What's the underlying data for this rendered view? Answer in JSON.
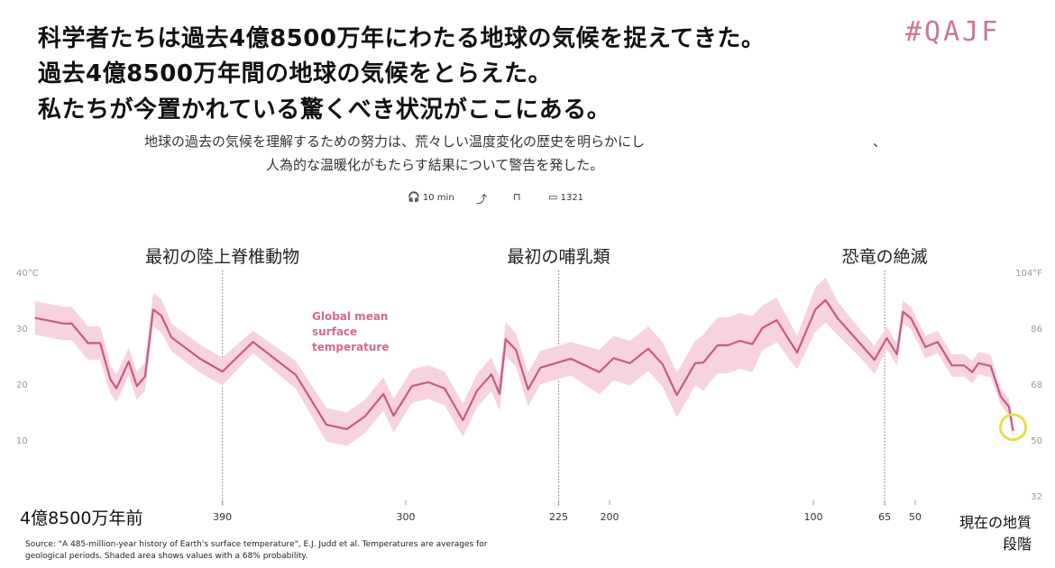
{
  "header": {
    "title_lines": [
      "科学者たちは過去4億8500万年にわたる地球の気候を捉えてきた。",
      "過去4億8500万年間の地球の気候をとらえた。",
      "私たちが今置かれている驚くべき状況がここにある。"
    ],
    "tag": "#QAJF",
    "subtitle_lines": [
      "地球の過去の気候を理解するための努力は、荒々しい温度変化の歴史を明らかにし",
      "人為的な温暖化がもたらす結果について警告を発した。"
    ],
    "subtitle_mark": "、",
    "meta": {
      "listen": "10 min",
      "comments": "1321"
    }
  },
  "chart_data": {
    "type": "line",
    "x": [
      482,
      468,
      464,
      456,
      450,
      445,
      442,
      436,
      432,
      428,
      424,
      420,
      415,
      401,
      390,
      375,
      354,
      339,
      329,
      320,
      311,
      306,
      297,
      289,
      281,
      272,
      265,
      258,
      254,
      251,
      246,
      240,
      234,
      219,
      205,
      198,
      190,
      181,
      174,
      167,
      158,
      154,
      147,
      142,
      136,
      130,
      125,
      118,
      108,
      99,
      94,
      88,
      77,
      70,
      64,
      59,
      56,
      52,
      45,
      39,
      32,
      26,
      22,
      19,
      13,
      8,
      4,
      2
    ],
    "series": [
      {
        "name": "Global mean surface temperature",
        "color": "#c85a80",
        "band_color": "#f7d3dd",
        "values": [
          32,
          31,
          31,
          27.5,
          27.5,
          21,
          19.4,
          24.2,
          19.8,
          21.5,
          33.5,
          32.4,
          28.5,
          24.7,
          22.4,
          27.7,
          21.8,
          12.9,
          12.1,
          14.4,
          18.4,
          14.5,
          19.8,
          20.5,
          19.4,
          13.7,
          19,
          21.9,
          18.4,
          28.2,
          26.3,
          19.2,
          23.1,
          24.7,
          22.3,
          24.8,
          23.9,
          26.5,
          23.7,
          18.2,
          23.9,
          24,
          27.1,
          27.1,
          27.9,
          27.3,
          30.2,
          31.6,
          25.8,
          33.5,
          35.2,
          31.9,
          27.4,
          24.5,
          28.4,
          25.5,
          33.1,
          31.9,
          26.8,
          27.7,
          23.5,
          23.5,
          22.3,
          23.9,
          23.4,
          17.9,
          16.1,
          11.8
        ],
        "lower": [
          29,
          28,
          28,
          24.5,
          24.5,
          18.5,
          16.9,
          21.7,
          17.3,
          19,
          30.5,
          29.4,
          26,
          22.2,
          19.9,
          25.7,
          19.3,
          9.9,
          9.1,
          11.4,
          15.4,
          11.5,
          16.8,
          17.5,
          16.4,
          10.7,
          16,
          18.9,
          15.4,
          25.2,
          23.3,
          16.2,
          20.1,
          21.7,
          18.3,
          20.8,
          19.9,
          22.5,
          19.7,
          14.2,
          19.9,
          19,
          22.1,
          22.1,
          22.9,
          22.3,
          26.2,
          27.6,
          22.8,
          29.5,
          31.2,
          28.9,
          24.9,
          22,
          26.4,
          23.5,
          31.1,
          29.9,
          24.8,
          25.7,
          21.5,
          21.5,
          20.3,
          21.9,
          21.4,
          16.4,
          14.6,
          10.3
        ],
        "upper": [
          35,
          34,
          34,
          30.5,
          30.5,
          23.5,
          21.9,
          26.7,
          22.3,
          24,
          36.5,
          35.4,
          31,
          27.2,
          24.9,
          29.7,
          24.3,
          15.9,
          15.1,
          17.4,
          21.4,
          17.5,
          22.8,
          23.5,
          22.4,
          16.7,
          22,
          24.9,
          21.4,
          31.2,
          29.3,
          22.2,
          26.1,
          27.7,
          26.3,
          28.8,
          27.9,
          30.5,
          27.7,
          22.2,
          27.9,
          29,
          32.1,
          32.1,
          32.9,
          32.3,
          34.2,
          35.6,
          28.8,
          37.5,
          39.2,
          34.9,
          29.9,
          27,
          30.4,
          27.5,
          35.1,
          33.9,
          28.8,
          29.7,
          25.5,
          25.5,
          24.3,
          25.9,
          25.4,
          19.4,
          17.6,
          13.3
        ]
      }
    ],
    "xlim": [
      485,
      0
    ],
    "xticks": [
      390,
      300,
      225,
      200,
      100,
      65,
      50
    ],
    "x_start_label": "4億8500万年前",
    "x_end_label": "現在の地質段階",
    "ylim": [
      0,
      40
    ],
    "yticks": [
      {
        "value": 40,
        "label": "40°C"
      },
      30,
      20,
      10
    ],
    "y2lim": [
      32,
      104
    ],
    "y2ticks": [
      {
        "value": 104,
        "label": "104°F"
      },
      86,
      68,
      50,
      32
    ],
    "events": [
      {
        "x": 390,
        "label": "最初の陸上脊椎動物"
      },
      {
        "x": 225,
        "label": "最初の哺乳類"
      },
      {
        "x": 65,
        "label": "恐竜の絶滅"
      }
    ],
    "highlight_color": "#e3e048",
    "source": "Source: \"A 485-million-year history of Earth's surface temperature\", E.J. Judd et al. Temperatures are averages for geological periods. Shaded area shows values with a 68% probability."
  }
}
